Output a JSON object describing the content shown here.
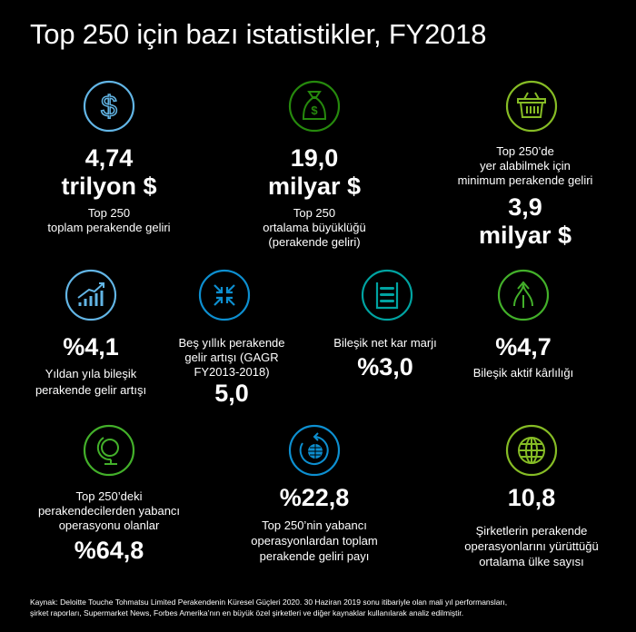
{
  "title": "Top 250 için bazı istatistikler, FY2018",
  "colors": {
    "blue_light": "#62b5e5",
    "green_dark": "#26890d",
    "green_light": "#86bc25",
    "blue": "#0097a9",
    "blue_mid": "#0d8fd0",
    "teal": "#00a3a1",
    "green": "#43b02a"
  },
  "stats": [
    {
      "icon": "dollar-icon",
      "value": "4,74",
      "unit": "trilyon $",
      "label": [
        "Top 250",
        "toplam perakende geliri"
      ]
    },
    {
      "icon": "money-bag-icon",
      "value": "19,0",
      "unit": "milyar $",
      "label": [
        "Top 250",
        "ortalama büyüklüğü",
        "(perakende geliri)"
      ]
    },
    {
      "icon": "shopping-basket-icon",
      "label": [
        "Top 250’de",
        "yer alabilmek için",
        "minimum perakende geliri"
      ],
      "value": "3,9",
      "unit": "milyar $"
    },
    {
      "icon": "growth-chart-icon",
      "value": "%4,1",
      "label": [
        "Yıldan yıla bileşik",
        "perakende gelir artışı"
      ]
    },
    {
      "icon": "compress-arrows-icon",
      "label": [
        "Beş yıllık perakende",
        "gelir artışı (GAGR",
        "FY2013-2018)"
      ],
      "value": "5,0"
    },
    {
      "icon": "abacus-icon",
      "label": [
        "Bileşik net kar marjı"
      ],
      "value": "%3,0"
    },
    {
      "icon": "split-arrows-icon",
      "value": "%4,7",
      "label": [
        "Bileşik aktif kârlılığı"
      ]
    },
    {
      "icon": "desk-globe-icon",
      "label": [
        "Top 250’deki",
        "perakendecilerden yabancı",
        "operasyonu olanlar"
      ],
      "value": "%64,8"
    },
    {
      "icon": "rotating-globe-icon",
      "value": "%22,8",
      "label": [
        "Top 250’nin yabancı",
        "operasyonlardan toplam",
        "perakende geliri payı"
      ]
    },
    {
      "icon": "globe-icon",
      "value": "10,8",
      "label": [
        "Şirketlerin perakende",
        "operasyonlarını yürüttüğü",
        "ortalama ülke sayısı"
      ]
    }
  ],
  "source": [
    "Kaynak: Deloitte Touche Tohmatsu Limited Perakendenin Küresel Güçleri 2020. 30 Haziran 2019 sonu itibariyle olan mali yıl performansları,",
    "şirket raporları, Supermarket News, Forbes Amerika’nın en büyük özel şirketleri ve diğer kaynaklar kullanılarak analiz edilmiştir."
  ]
}
